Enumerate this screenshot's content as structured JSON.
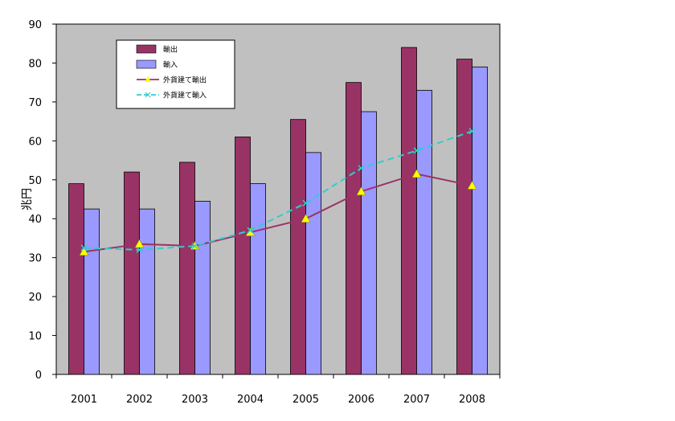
{
  "chart_data": {
    "type": "bar",
    "title": "",
    "xlabel": "",
    "ylabel": "兆円",
    "ylim": [
      0,
      90
    ],
    "yticks": [
      0,
      10,
      20,
      30,
      40,
      50,
      60,
      70,
      80,
      90
    ],
    "grid": false,
    "legend_position": "top-left",
    "categories": [
      "2001",
      "2002",
      "2003",
      "2004",
      "2005",
      "2006",
      "2007",
      "2008"
    ],
    "series": [
      {
        "name": "輸出",
        "type": "bar",
        "color": "#993366",
        "values": [
          49,
          52,
          54.5,
          61,
          65.5,
          75,
          84,
          81
        ]
      },
      {
        "name": "輸入",
        "type": "bar",
        "color": "#9999ff",
        "values": [
          42.5,
          42.5,
          44.5,
          49,
          57,
          67.5,
          73,
          79
        ]
      },
      {
        "name": "外貨建て輸出",
        "type": "line",
        "color": "#993366",
        "marker": "triangle",
        "marker_color": "#ffff00",
        "values": [
          31.5,
          33.5,
          33,
          36.5,
          40,
          47,
          51.5,
          48.5
        ]
      },
      {
        "name": "外貨建て輸入",
        "type": "line",
        "color": "#33cccc",
        "dashed": true,
        "marker": "x",
        "values": [
          32.5,
          32,
          33,
          37,
          44,
          53,
          57.5,
          62.5
        ]
      }
    ]
  }
}
